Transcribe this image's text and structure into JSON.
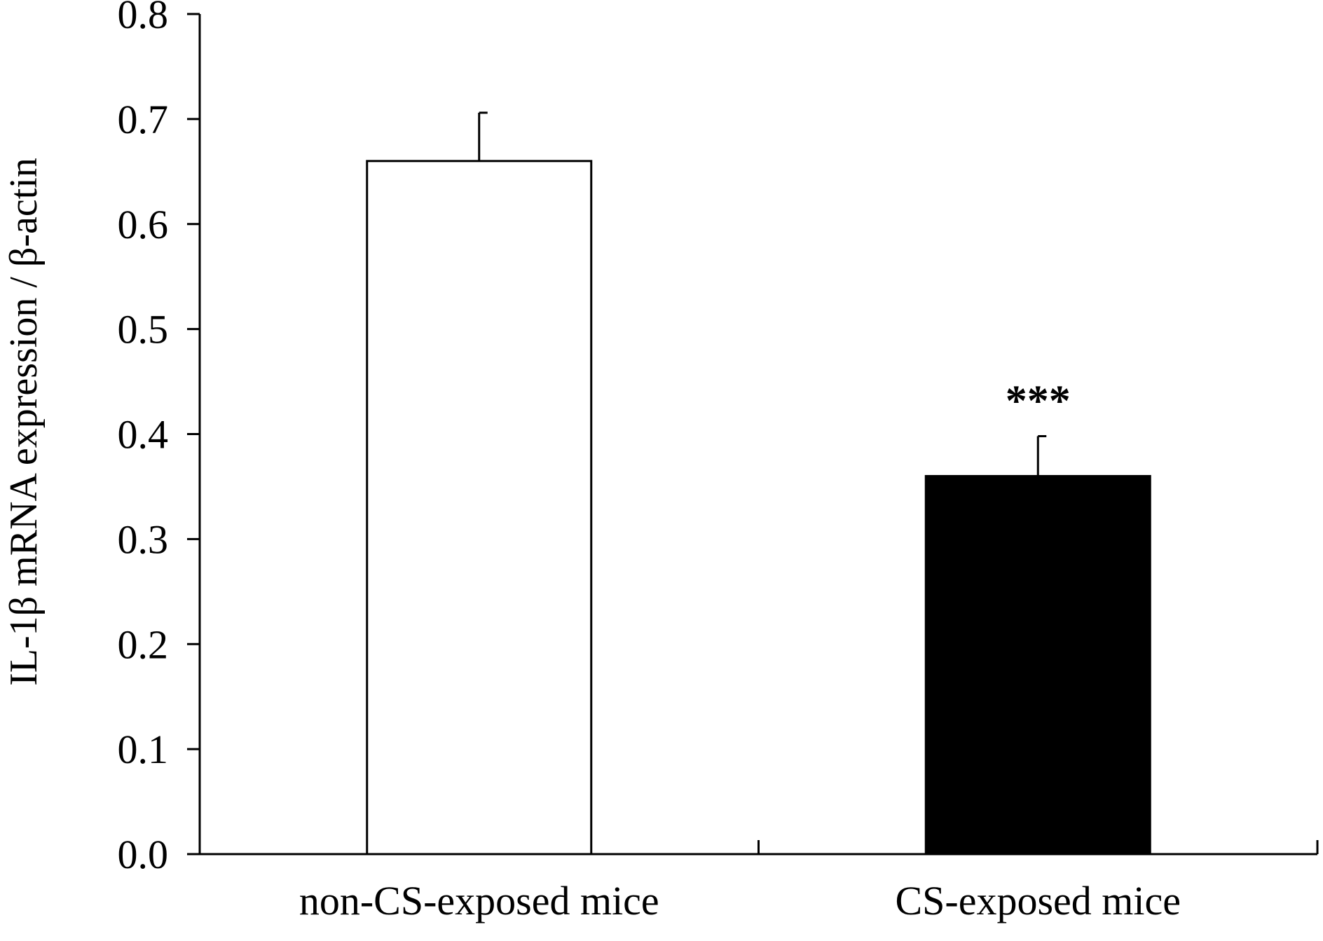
{
  "chart_data": {
    "type": "bar",
    "title": "",
    "xlabel": "",
    "ylabel": "IL-1β mRNA expression / β-actin",
    "categories": [
      "non-CS-exposed mice",
      "CS-exposed mice"
    ],
    "values": [
      0.66,
      0.36
    ],
    "error_upper": [
      0.706,
      0.398
    ],
    "bar_fill_colors": [
      "#ffffff",
      "#000000"
    ],
    "bar_edge_color": "#000000",
    "annotations": [
      "",
      "***"
    ],
    "ylim": [
      0.0,
      0.8
    ],
    "yticks": [
      "0.0",
      "0.1",
      "0.2",
      "0.3",
      "0.4",
      "0.5",
      "0.6",
      "0.7",
      "0.8"
    ],
    "grid": false,
    "legend": "none"
  }
}
